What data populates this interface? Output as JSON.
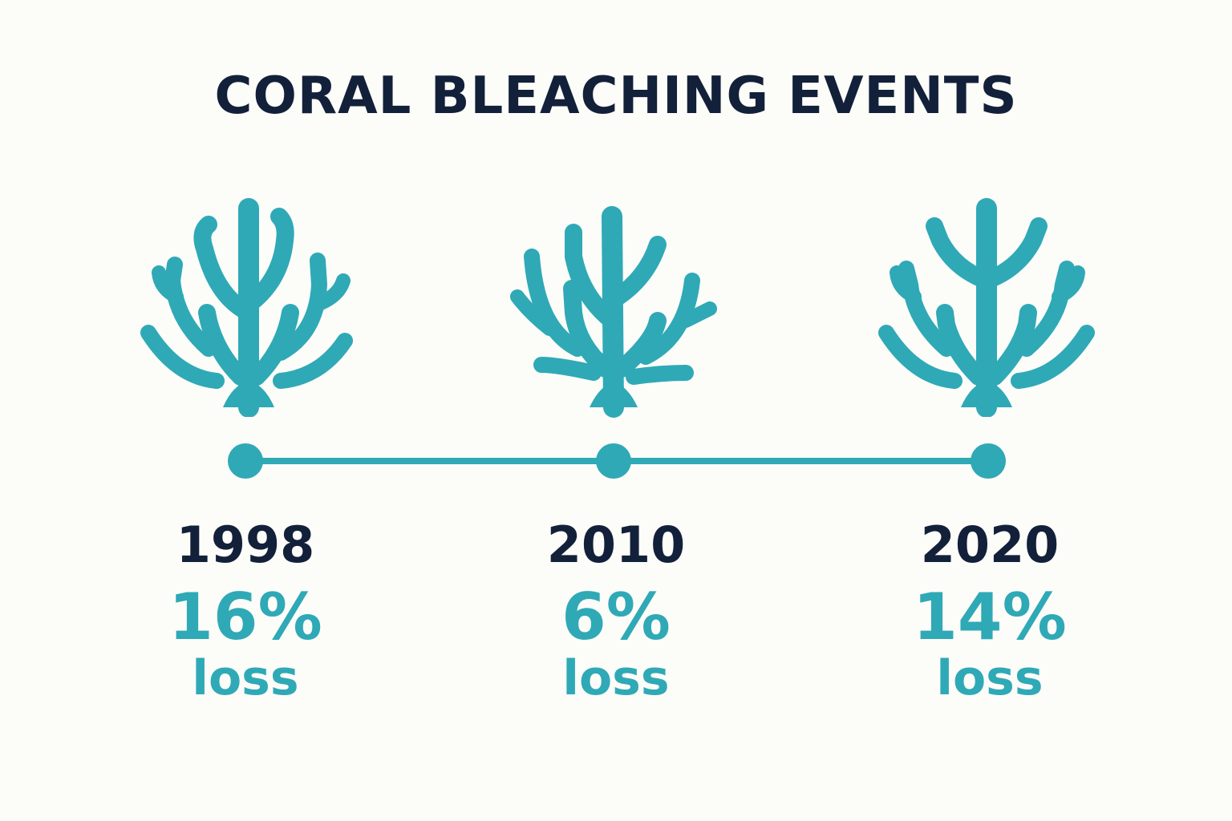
{
  "title": "CORAL BLEACHING EVENTS",
  "colors": {
    "accent": "#2fa9b6",
    "text": "#13203a",
    "background": "#fcfcf9"
  },
  "icon": "coral-icon",
  "events": [
    {
      "year": "1998",
      "percent": "16%",
      "label": "loss"
    },
    {
      "year": "2010",
      "percent": "6%",
      "label": "loss"
    },
    {
      "year": "2020",
      "percent": "14%",
      "label": "loss"
    }
  ]
}
